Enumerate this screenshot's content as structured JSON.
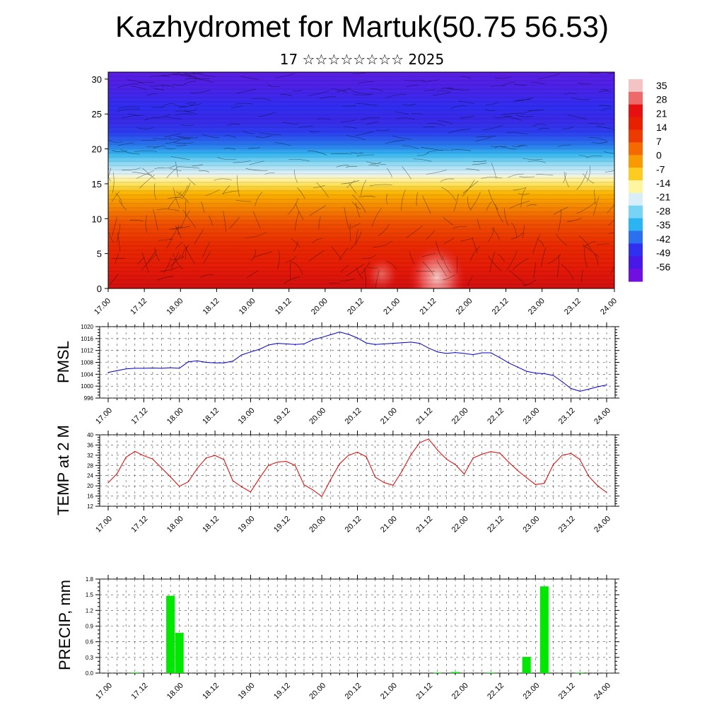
{
  "title": "Kazhydromet for Martuk(50.75 56.53)",
  "subtitle": "17 ☆☆☆☆☆☆☆☆ 2025",
  "colors": {
    "pmsl_line": "#0000cc",
    "temp_line": "#dd0000",
    "precip_bar": "#00e800"
  },
  "chart_data": [
    {
      "type": "heatmap",
      "name": "cross-section",
      "ylim": [
        0,
        31
      ],
      "yticks": [
        0,
        5,
        10,
        15,
        20,
        25,
        30
      ],
      "colorbar": {
        "labels": [
          35,
          28,
          21,
          14,
          7,
          0,
          -7,
          -14,
          -21,
          -28,
          -35,
          -42,
          -49,
          -56
        ],
        "palette": [
          "#f4c4c4",
          "#ee6a6a",
          "#e61010",
          "#e62000",
          "#ec3a00",
          "#f46a00",
          "#f89a00",
          "#fccc20",
          "#fff4a0",
          "#d8eef8",
          "#78d4f4",
          "#2ab4f4",
          "#2a70f0",
          "#3030f0",
          "#4818e8",
          "#7010e0"
        ]
      },
      "xticks": [
        "17.00",
        "17.12",
        "18.00",
        "18.12",
        "19.00",
        "19.12",
        "20.00",
        "20.12",
        "21.00",
        "21.12",
        "22.00",
        "22.12",
        "23.00",
        "23.12",
        "24.00"
      ]
    },
    {
      "type": "line",
      "name": "PMSL",
      "ylabel": "PMSL",
      "ylim": [
        996,
        1020
      ],
      "yticks": [
        996,
        1000,
        1004,
        1008,
        1012,
        1016,
        1020
      ],
      "xticks": [
        "17.00",
        "17.12",
        "18.00",
        "18.12",
        "19.00",
        "19.12",
        "20.00",
        "20.12",
        "21.00",
        "21.12",
        "22.00",
        "22.12",
        "23.00",
        "23.12",
        "24.00"
      ],
      "x": [
        0,
        3,
        6,
        9,
        12,
        15,
        18,
        21,
        24,
        27,
        30,
        33,
        36,
        39,
        42,
        45,
        48,
        51,
        54,
        57,
        60,
        63,
        66,
        69,
        72,
        75,
        78,
        81,
        84,
        87,
        90,
        93,
        96,
        99,
        102,
        105,
        108,
        111,
        114,
        117,
        120,
        123,
        126,
        129,
        132,
        135,
        138,
        141,
        144,
        147,
        150,
        153,
        156,
        159,
        162,
        165,
        168
      ],
      "values": [
        1004.6,
        1005.2,
        1005.8,
        1006.0,
        1006.0,
        1006.1,
        1006.0,
        1006.2,
        1006.0,
        1008.2,
        1008.5,
        1008.0,
        1007.8,
        1007.8,
        1008.4,
        1010.5,
        1011.5,
        1012.4,
        1013.8,
        1014.4,
        1014.2,
        1014.0,
        1014.2,
        1015.6,
        1016.4,
        1017.3,
        1018.2,
        1017.4,
        1016.2,
        1014.5,
        1014.0,
        1014.2,
        1014.4,
        1014.6,
        1014.8,
        1014.4,
        1012.8,
        1011.5,
        1011.0,
        1011.3,
        1011.0,
        1010.6,
        1011.2,
        1011.2,
        1009.6,
        1007.8,
        1006.4,
        1005.0,
        1004.4,
        1004.2,
        1003.6,
        1001.5,
        999.2,
        998.3,
        999.0,
        999.8,
        1000.4
      ]
    },
    {
      "type": "line",
      "name": "TEMP at 2 M",
      "ylabel": "TEMP at 2 M",
      "ylim": [
        12,
        40
      ],
      "yticks": [
        12,
        16,
        20,
        24,
        28,
        32,
        36,
        40
      ],
      "xticks": [
        "17.00",
        "17.12",
        "18.00",
        "18.12",
        "19.00",
        "19.12",
        "20.00",
        "20.12",
        "21.00",
        "21.12",
        "22.00",
        "22.12",
        "23.00",
        "23.12",
        "24.00"
      ],
      "x": [
        0,
        3,
        6,
        9,
        12,
        15,
        18,
        21,
        24,
        27,
        30,
        33,
        36,
        39,
        42,
        45,
        48,
        51,
        54,
        57,
        60,
        63,
        66,
        69,
        72,
        75,
        78,
        81,
        84,
        87,
        90,
        93,
        96,
        99,
        102,
        105,
        108,
        111,
        114,
        117,
        120,
        123,
        126,
        129,
        132,
        135,
        138,
        141,
        144,
        147,
        150,
        153,
        156,
        159,
        162,
        165,
        168
      ],
      "values": [
        21.2,
        24.8,
        31.2,
        33.5,
        31.8,
        30.5,
        27.0,
        23.5,
        19.8,
        21.6,
        26.8,
        30.9,
        31.9,
        30.3,
        22.0,
        19.6,
        17.6,
        23.0,
        28.0,
        29.3,
        29.6,
        28.0,
        20.4,
        18.4,
        15.8,
        22.5,
        28.6,
        32.0,
        33.2,
        31.4,
        23.4,
        21.3,
        20.2,
        25.7,
        32.1,
        36.9,
        38.4,
        34.0,
        30.5,
        28.3,
        24.6,
        30.9,
        32.4,
        33.4,
        32.8,
        29.3,
        26.0,
        23.2,
        20.5,
        21.0,
        28.3,
        32.0,
        32.7,
        30.3,
        23.7,
        20.0,
        17.4
      ]
    },
    {
      "type": "bar",
      "name": "PRECIP",
      "ylabel": "PRECIP, mm",
      "ylim": [
        0,
        1.8
      ],
      "yticks": [
        "0.0",
        "0.3",
        "0.6",
        "0.9",
        "1.2",
        "1.5",
        "1.8"
      ],
      "xticks": [
        "17.00",
        "17.12",
        "18.00",
        "18.12",
        "19.00",
        "19.12",
        "20.00",
        "20.12",
        "21.00",
        "21.12",
        "22.00",
        "22.12",
        "23.00",
        "23.12",
        "24.00"
      ],
      "x": [
        9,
        21,
        24,
        111,
        117,
        129,
        141,
        147,
        159
      ],
      "values": [
        0.01,
        1.48,
        0.77,
        0.01,
        0.02,
        0.01,
        0.31,
        1.66,
        0.01
      ]
    }
  ]
}
